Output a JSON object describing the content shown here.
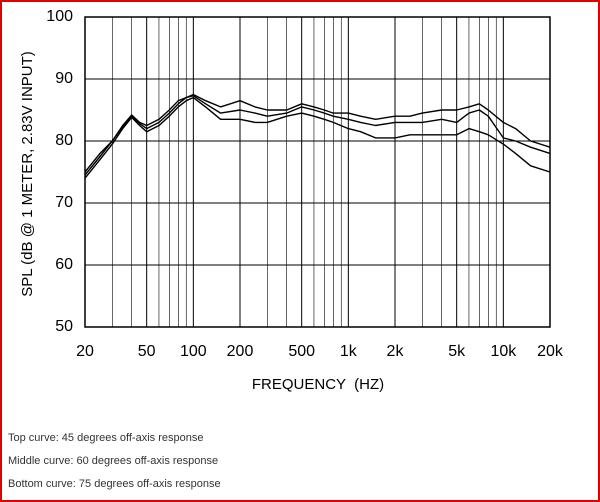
{
  "chart_data": {
    "type": "line",
    "ylabel": "SPL (dB @ 1 METER, 2.83V INPUT)",
    "xlabel": "FREQUENCY  (HZ)",
    "x": [
      20,
      25,
      30,
      35,
      40,
      45,
      50,
      60,
      70,
      80,
      90,
      100,
      120,
      150,
      200,
      250,
      300,
      400,
      500,
      600,
      700,
      800,
      1000,
      1200,
      1500,
      2000,
      2500,
      3000,
      4000,
      5000,
      6000,
      7000,
      8000,
      10000,
      12000,
      15000,
      20000
    ],
    "series": [
      {
        "color": "#000000",
        "values": [
          75,
          78,
          80,
          82.5,
          84.2,
          83,
          82.5,
          83.5,
          85,
          86.5,
          87,
          87.5,
          86.5,
          85.5,
          86.5,
          85.5,
          85,
          85,
          86,
          85.5,
          85,
          84.5,
          84.5,
          84,
          83.5,
          84,
          84,
          84.5,
          85,
          85,
          85.5,
          86,
          85,
          83,
          82,
          80,
          79
        ]
      },
      {
        "color": "#000000",
        "values": [
          74.5,
          77.5,
          80,
          82.3,
          84,
          82.8,
          82,
          83,
          84.5,
          86,
          87,
          87.3,
          86,
          84.5,
          85,
          84.5,
          84,
          84.5,
          85.5,
          85,
          84.5,
          84,
          83.5,
          83,
          82.5,
          83,
          83,
          83,
          83.5,
          83,
          84.5,
          85,
          84,
          80.5,
          80,
          79,
          78
        ]
      },
      {
        "color": "#000000",
        "values": [
          74,
          77,
          79.5,
          82,
          83.8,
          82.5,
          81.5,
          82.5,
          84,
          85.5,
          86.5,
          87,
          85.5,
          83.5,
          83.5,
          83,
          83,
          84,
          84.5,
          84,
          83.5,
          83,
          82,
          81.5,
          80.5,
          80.5,
          81,
          81,
          81,
          81,
          82,
          81.5,
          81,
          79.5,
          78,
          76,
          75
        ]
      }
    ],
    "xscale": "log",
    "xlim": [
      20,
      20000
    ],
    "ylim": [
      50,
      100
    ],
    "xticks": [
      20,
      50,
      100,
      200,
      500,
      {
        "value": 1000,
        "label": "1k"
      },
      {
        "value": 2000,
        "label": "2k"
      },
      {
        "value": 5000,
        "label": "5k"
      },
      {
        "value": 10000,
        "label": "10k"
      },
      {
        "value": 20000,
        "label": "20k"
      }
    ],
    "x_minor_ticks": [
      30,
      40,
      60,
      70,
      80,
      90,
      300,
      400,
      600,
      700,
      800,
      900,
      3000,
      4000,
      6000,
      7000,
      8000,
      9000
    ],
    "yticks": [
      50,
      60,
      70,
      80,
      90,
      100
    ],
    "grid": true
  },
  "notes": [
    "Top curve: 45 degrees off-axis response",
    "Middle curve: 60 degrees off-axis response",
    "Bottom curve: 75 degrees off-axis response"
  ]
}
